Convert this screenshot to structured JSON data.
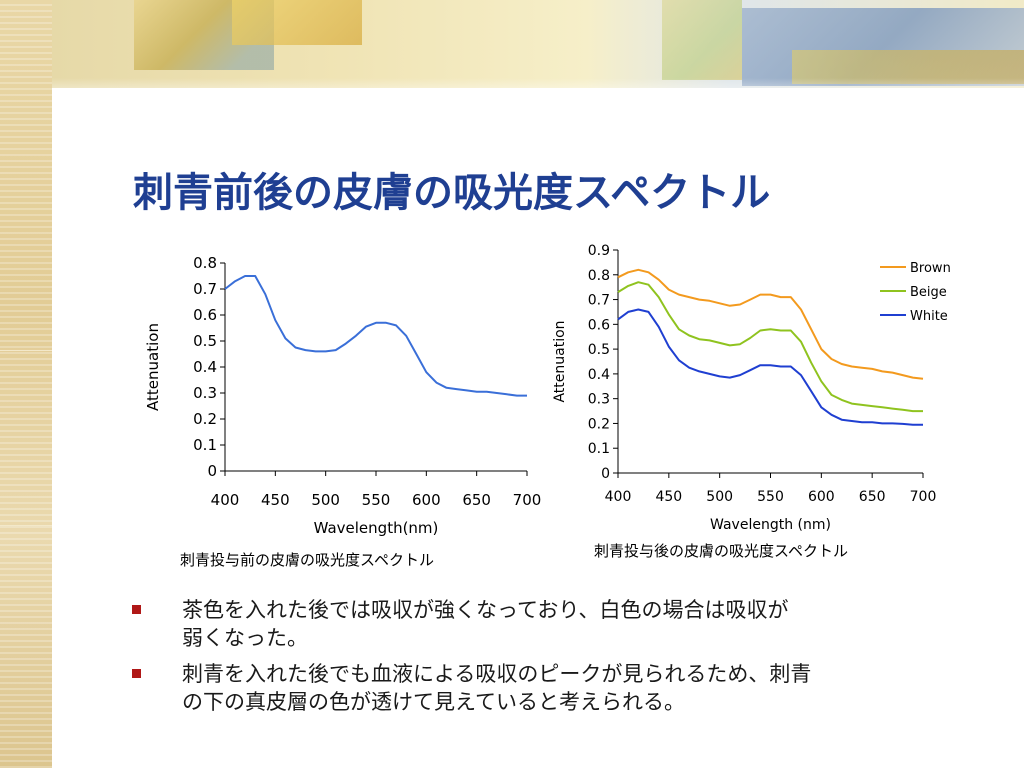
{
  "slide": {
    "title": "刺青前後の皮膚の吸光度スペクトル",
    "bullets": [
      {
        "line1": "茶色を入れた後では吸収が強くなっており、白色の場合は吸収が",
        "line2": "弱くなった。"
      },
      {
        "line1": "刺青を入れた後でも血液による吸収のピークが見られるため、刺青",
        "line2": "の下の真皮層の色が透けて見えていると考えられる。"
      }
    ],
    "bullet_color": "#b01817"
  },
  "chart_data": [
    {
      "type": "line",
      "title": "",
      "caption": "刺青投与前の皮膚の吸光度スペクトル",
      "xlabel": "Wavelength(nm)",
      "ylabel": "Attenuation",
      "xlim": [
        400,
        700
      ],
      "ylim": [
        0,
        0.8
      ],
      "xticks": [
        "400",
        "450",
        "500",
        "550",
        "600",
        "650",
        "700"
      ],
      "yticks": [
        "0",
        "0.1",
        "0.2",
        "0.3",
        "0.4",
        "0.5",
        "0.6",
        "0.7",
        "0.8"
      ],
      "grid": false,
      "legend": "none",
      "x": [
        400,
        410,
        420,
        430,
        440,
        450,
        460,
        470,
        480,
        490,
        500,
        510,
        520,
        530,
        540,
        550,
        560,
        570,
        580,
        590,
        600,
        610,
        620,
        630,
        640,
        650,
        660,
        670,
        680,
        690,
        700
      ],
      "series": [
        {
          "color": "#3a6fd8",
          "values": [
            0.7,
            0.73,
            0.75,
            0.75,
            0.68,
            0.58,
            0.51,
            0.475,
            0.465,
            0.46,
            0.46,
            0.465,
            0.49,
            0.52,
            0.555,
            0.57,
            0.57,
            0.56,
            0.52,
            0.45,
            0.38,
            0.34,
            0.32,
            0.315,
            0.31,
            0.305,
            0.305,
            0.3,
            0.295,
            0.29,
            0.29
          ]
        }
      ]
    },
    {
      "type": "line",
      "title": "",
      "caption": "刺青投与後の皮膚の吸光度スペクトル",
      "xlabel": "Wavelength (nm)",
      "ylabel": "Attenuation",
      "xlim": [
        400,
        700
      ],
      "ylim": [
        0,
        0.9
      ],
      "xticks": [
        "400",
        "450",
        "500",
        "550",
        "600",
        "650",
        "700"
      ],
      "yticks": [
        "0",
        "0.1",
        "0.2",
        "0.3",
        "0.4",
        "0.5",
        "0.6",
        "0.7",
        "0.8",
        "0.9"
      ],
      "grid": false,
      "legend": "top-right",
      "x": [
        400,
        410,
        420,
        430,
        440,
        450,
        460,
        470,
        480,
        490,
        500,
        510,
        520,
        530,
        540,
        550,
        560,
        570,
        580,
        590,
        600,
        610,
        620,
        630,
        640,
        650,
        660,
        670,
        680,
        690,
        700
      ],
      "series": [
        {
          "name": "Brown",
          "color": "#f39a1e",
          "values": [
            0.79,
            0.81,
            0.82,
            0.81,
            0.78,
            0.74,
            0.72,
            0.71,
            0.7,
            0.695,
            0.685,
            0.675,
            0.68,
            0.7,
            0.72,
            0.72,
            0.71,
            0.71,
            0.66,
            0.58,
            0.5,
            0.46,
            0.44,
            0.43,
            0.425,
            0.42,
            0.41,
            0.405,
            0.395,
            0.385,
            0.38
          ]
        },
        {
          "name": "Beige",
          "color": "#8fc31f",
          "values": [
            0.73,
            0.755,
            0.77,
            0.76,
            0.71,
            0.64,
            0.58,
            0.555,
            0.54,
            0.535,
            0.525,
            0.515,
            0.52,
            0.545,
            0.575,
            0.58,
            0.575,
            0.575,
            0.53,
            0.445,
            0.37,
            0.315,
            0.295,
            0.28,
            0.275,
            0.27,
            0.265,
            0.26,
            0.255,
            0.25,
            0.25
          ]
        },
        {
          "name": "White",
          "color": "#1f3fd1",
          "values": [
            0.62,
            0.65,
            0.66,
            0.65,
            0.59,
            0.51,
            0.455,
            0.425,
            0.41,
            0.4,
            0.39,
            0.385,
            0.395,
            0.415,
            0.435,
            0.435,
            0.43,
            0.43,
            0.395,
            0.33,
            0.265,
            0.235,
            0.215,
            0.21,
            0.205,
            0.205,
            0.2,
            0.2,
            0.198,
            0.195,
            0.195
          ]
        }
      ]
    }
  ]
}
